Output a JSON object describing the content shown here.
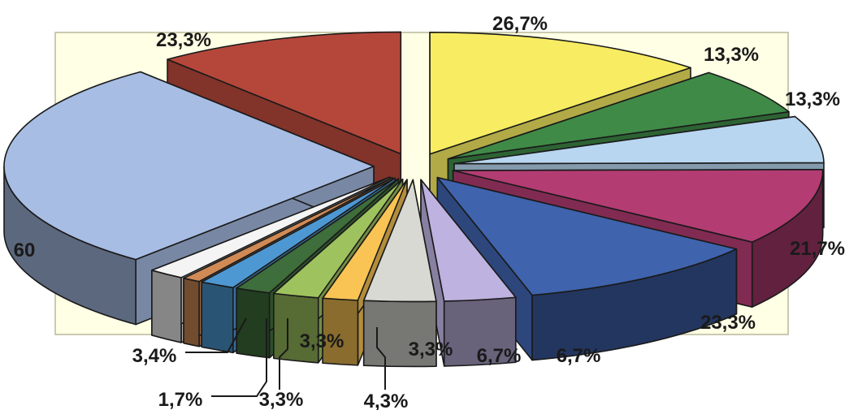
{
  "chart_data": {
    "type": "pie",
    "style": "3d-exploded",
    "values": [
      26.7,
      13.3,
      13.3,
      21.7,
      23.3,
      6.7,
      6.7,
      3.3,
      4.3,
      3.3,
      3.3,
      1.7,
      3.4,
      60,
      23.3
    ],
    "labels": [
      "26,7%",
      "13,3%",
      "13,3%",
      "21,7%",
      "23,3%",
      "6,7%",
      "6,7%",
      "3,3%",
      "4,3%",
      "3,3%",
      "3,3%",
      "1,7%",
      "3,4%",
      "60",
      "23,3%"
    ],
    "colors": [
      "#f7ec62",
      "#3f8a47",
      "#b8d6f0",
      "#b33c73",
      "#3f63ad",
      "#bdb2e0",
      "#d9d9d3",
      "#f9c453",
      "#9ec35e",
      "#3e6e3b",
      "#4d98d3",
      "#d08a55",
      "#f4f4f4",
      "#a7bde4",
      "#b5473a"
    ],
    "plot_area_color": "#ffffe5",
    "legend": "none"
  }
}
